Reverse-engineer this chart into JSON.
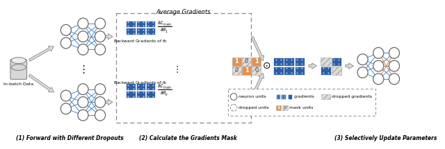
{
  "title": "Average Gradients",
  "section1_label": "(1) Forward with Different Dropouts",
  "section2_label": "(2) Calculate the Gradients Mask",
  "section3_label": "(3) Selectively Update Parameters",
  "dark_blue": "#2B5EA7",
  "orange_dark": "#E8914A",
  "bg_white": "#ffffff",
  "node_edge": "#666666",
  "blue_line": "#3a7cc5",
  "orange_line": "#E8914A",
  "arrow_fill": "#cccccc",
  "arrow_edge": "#999999"
}
